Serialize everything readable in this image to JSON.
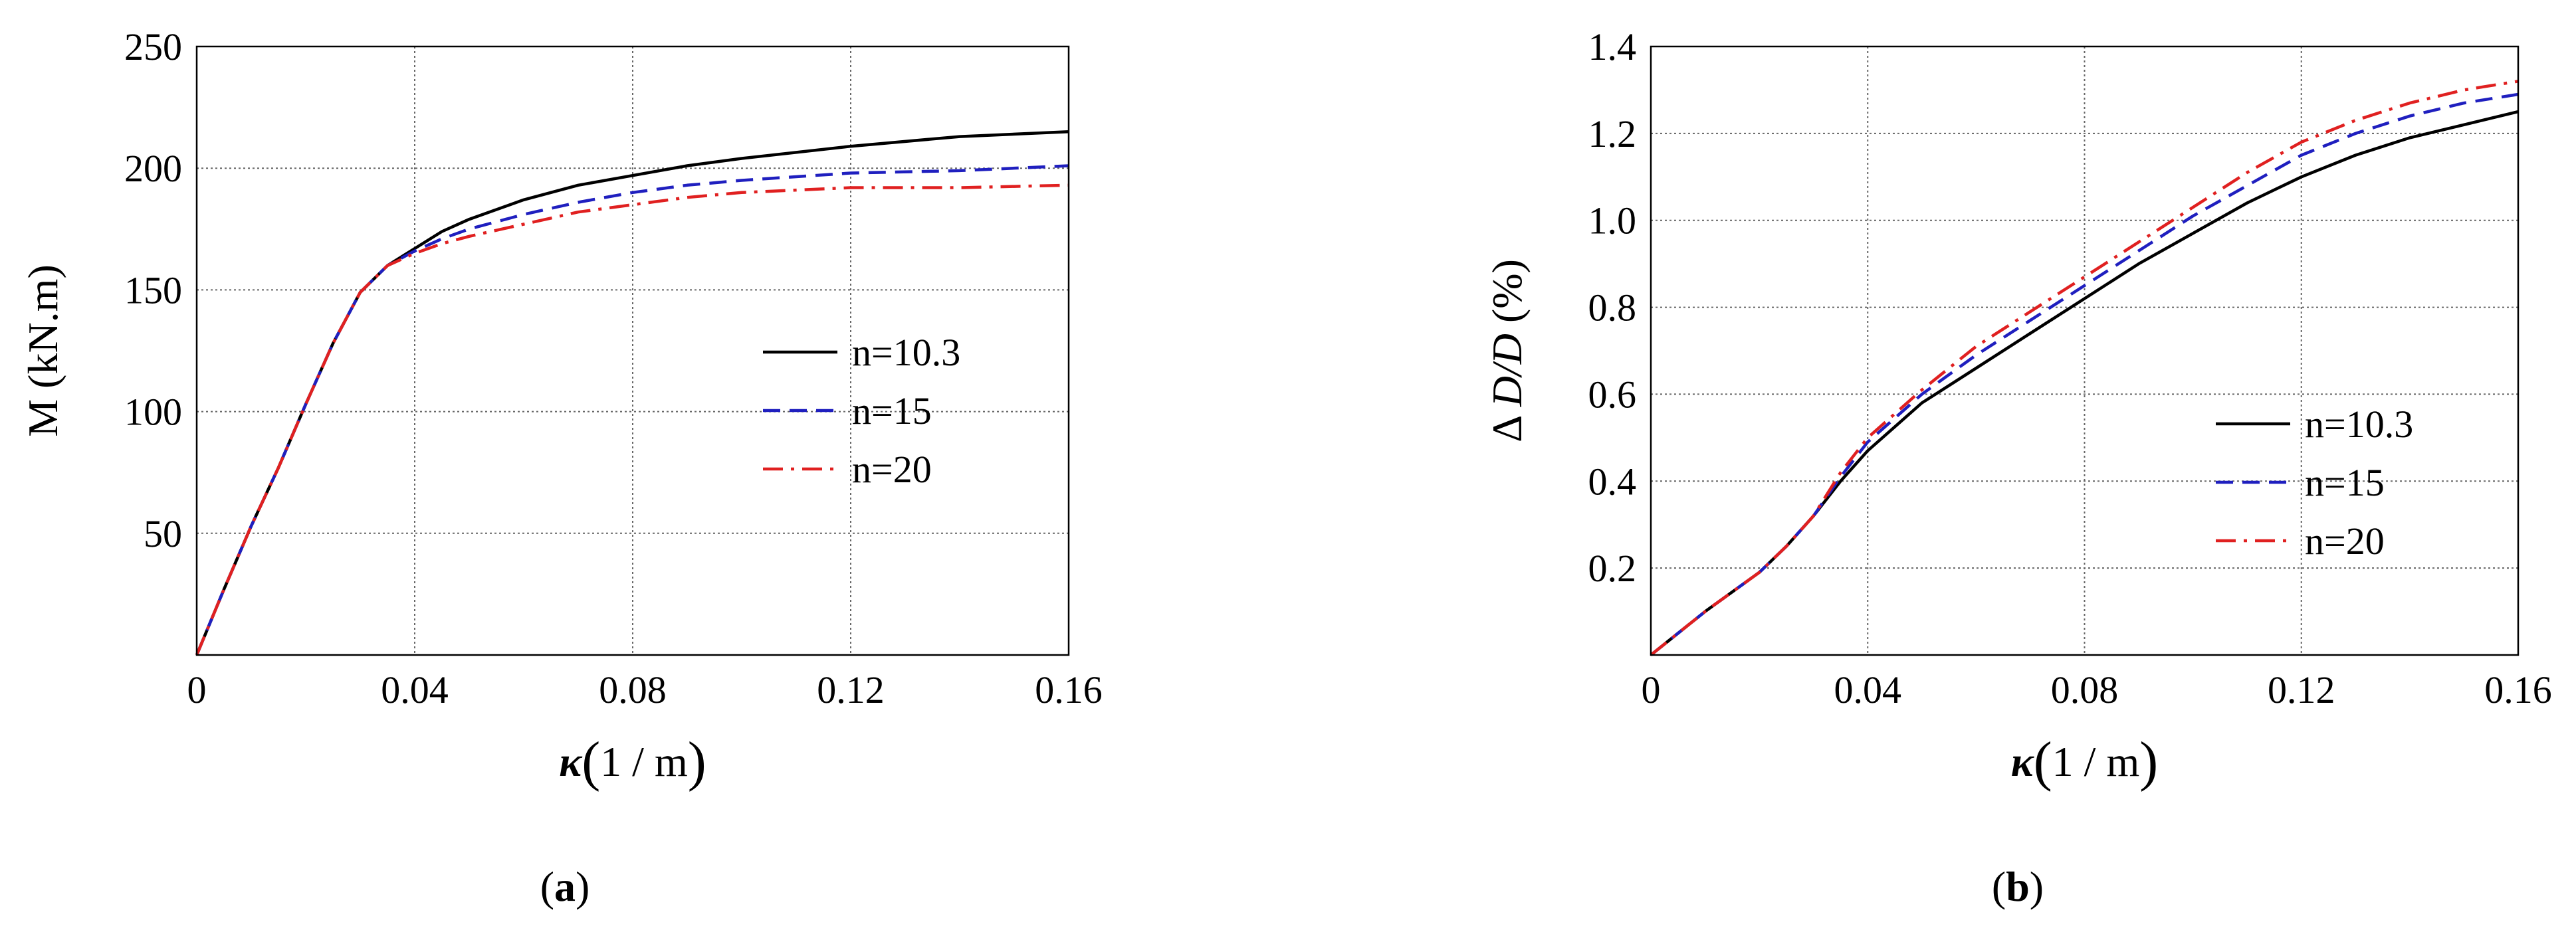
{
  "chart_data": [
    {
      "type": "line",
      "panel_label": "a",
      "xlabel_symbol": "κ",
      "xlabel_unit": "1 / m",
      "ylabel": "M (kN.m)",
      "xlim": [
        0,
        0.16
      ],
      "ylim": [
        0,
        250
      ],
      "x_ticks": [
        0,
        0.04,
        0.08,
        0.12,
        0.16
      ],
      "x_tick_labels": [
        "0",
        "0.04",
        "0.08",
        "0.12",
        "0.16"
      ],
      "y_ticks": [
        50,
        100,
        150,
        200,
        250
      ],
      "y_tick_labels": [
        "50",
        "100",
        "150",
        "200",
        "250"
      ],
      "grid": true,
      "legend_position": "right",
      "series": [
        {
          "name": "n=10.3",
          "color": "#000000",
          "style": "solid",
          "x": [
            0,
            0.005,
            0.01,
            0.015,
            0.02,
            0.025,
            0.03,
            0.035,
            0.04,
            0.045,
            0.05,
            0.06,
            0.07,
            0.08,
            0.09,
            0.1,
            0.12,
            0.14,
            0.16
          ],
          "y": [
            0,
            27,
            53,
            77,
            103,
            128,
            149,
            160,
            167,
            174,
            179,
            187,
            193,
            197,
            201,
            204,
            209,
            213,
            215
          ]
        },
        {
          "name": "n=15",
          "color": "#1f1fbf",
          "style": "dashed",
          "x": [
            0,
            0.005,
            0.01,
            0.015,
            0.02,
            0.025,
            0.03,
            0.035,
            0.04,
            0.045,
            0.05,
            0.06,
            0.07,
            0.08,
            0.09,
            0.1,
            0.12,
            0.14,
            0.16
          ],
          "y": [
            0,
            27,
            53,
            77,
            103,
            128,
            149,
            160,
            166,
            171,
            175,
            181,
            186,
            190,
            193,
            195,
            198,
            199,
            201
          ]
        },
        {
          "name": "n=20",
          "color": "#e02020",
          "style": "dashdot",
          "x": [
            0,
            0.005,
            0.01,
            0.015,
            0.02,
            0.025,
            0.03,
            0.035,
            0.04,
            0.045,
            0.05,
            0.06,
            0.07,
            0.08,
            0.09,
            0.1,
            0.12,
            0.14,
            0.16
          ],
          "y": [
            0,
            27,
            53,
            77,
            103,
            128,
            149,
            160,
            165,
            169,
            172,
            177,
            182,
            185,
            188,
            190,
            192,
            192,
            193
          ]
        }
      ]
    },
    {
      "type": "line",
      "panel_label": "b",
      "xlabel_symbol": "κ",
      "xlabel_unit": "1 / m",
      "ylabel_prefix": "Δ ",
      "ylabel_italic": "D/D",
      "ylabel_suffix": " (%)",
      "xlim": [
        0,
        0.16
      ],
      "ylim": [
        0,
        1.4
      ],
      "x_ticks": [
        0,
        0.04,
        0.08,
        0.12,
        0.16
      ],
      "x_tick_labels": [
        "0",
        "0.04",
        "0.08",
        "0.12",
        "0.16"
      ],
      "y_ticks": [
        0.2,
        0.4,
        0.6,
        0.8,
        1.0,
        1.2,
        1.4
      ],
      "y_tick_labels": [
        "0.2",
        "0.4",
        "0.6",
        "0.8",
        "1.0",
        "1.2",
        "1.4"
      ],
      "grid": true,
      "legend_position": "bottom-right",
      "series": [
        {
          "name": "n=10.3",
          "color": "#000000",
          "style": "solid",
          "x": [
            0,
            0.01,
            0.02,
            0.025,
            0.03,
            0.035,
            0.04,
            0.05,
            0.06,
            0.07,
            0.08,
            0.09,
            0.1,
            0.11,
            0.12,
            0.13,
            0.14,
            0.15,
            0.16
          ],
          "y": [
            0,
            0.1,
            0.19,
            0.25,
            0.32,
            0.4,
            0.47,
            0.58,
            0.66,
            0.74,
            0.82,
            0.9,
            0.97,
            1.04,
            1.1,
            1.15,
            1.19,
            1.22,
            1.25
          ]
        },
        {
          "name": "n=15",
          "color": "#1f1fbf",
          "style": "dashed",
          "x": [
            0,
            0.01,
            0.02,
            0.025,
            0.03,
            0.035,
            0.04,
            0.05,
            0.06,
            0.07,
            0.08,
            0.09,
            0.1,
            0.11,
            0.12,
            0.13,
            0.14,
            0.15,
            0.16
          ],
          "y": [
            0,
            0.1,
            0.19,
            0.25,
            0.32,
            0.41,
            0.49,
            0.6,
            0.69,
            0.77,
            0.85,
            0.93,
            1.01,
            1.08,
            1.15,
            1.2,
            1.24,
            1.27,
            1.29
          ]
        },
        {
          "name": "n=20",
          "color": "#e02020",
          "style": "dashdot",
          "x": [
            0,
            0.01,
            0.02,
            0.025,
            0.03,
            0.035,
            0.04,
            0.05,
            0.06,
            0.07,
            0.08,
            0.09,
            0.1,
            0.11,
            0.12,
            0.13,
            0.14,
            0.15,
            0.16
          ],
          "y": [
            0,
            0.1,
            0.19,
            0.25,
            0.32,
            0.42,
            0.5,
            0.61,
            0.71,
            0.79,
            0.87,
            0.95,
            1.03,
            1.11,
            1.18,
            1.23,
            1.27,
            1.3,
            1.32
          ]
        }
      ]
    }
  ]
}
